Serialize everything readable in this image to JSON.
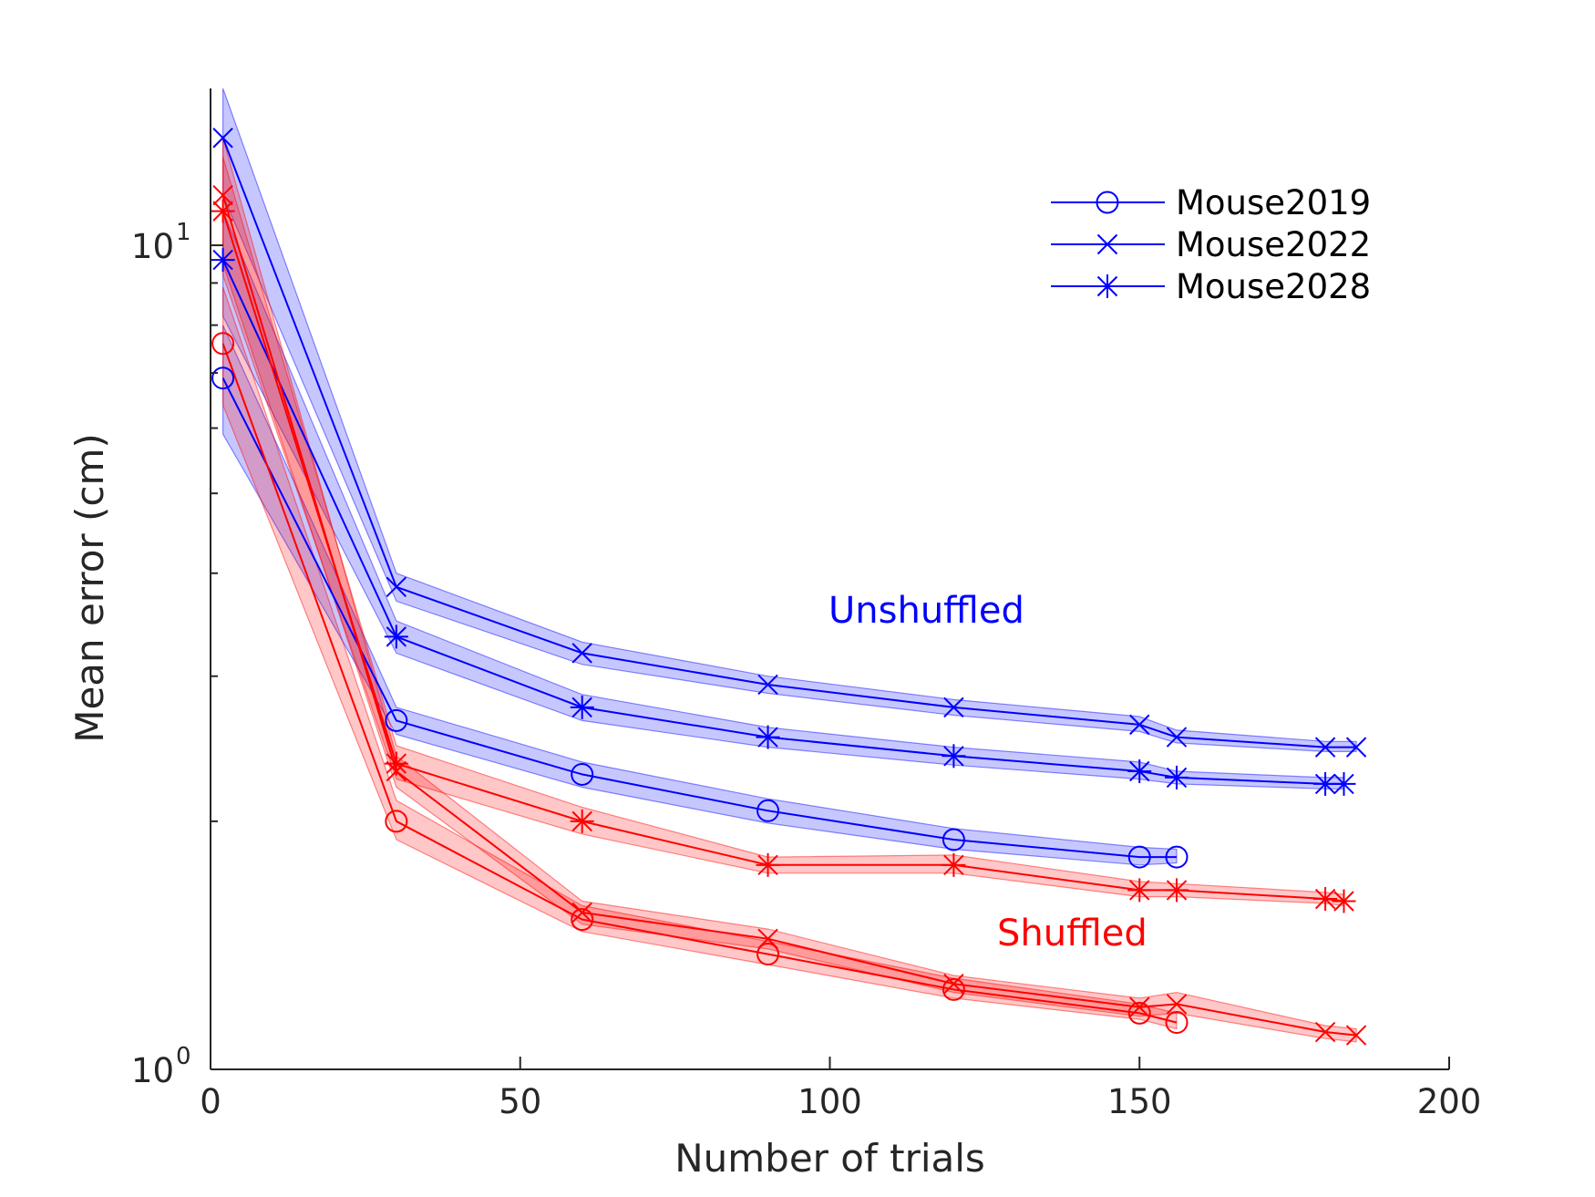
{
  "chart_data": {
    "type": "line",
    "title": "",
    "xlabel": "Number of trials",
    "ylabel": "Mean error (cm)",
    "xlim": [
      0,
      200
    ],
    "ylim": [
      1,
      15.5
    ],
    "yscale": "log",
    "xticks": [
      "0",
      "50",
      "100",
      "150",
      "200"
    ],
    "yticks": [
      {
        "value": 1,
        "base": "10",
        "exp": "0"
      },
      {
        "value": 10,
        "base": "10",
        "exp": "1"
      }
    ],
    "grid": false,
    "legend": {
      "position": "top-right",
      "entries": [
        {
          "name": "Mouse2019",
          "marker": "circle"
        },
        {
          "name": "Mouse2022",
          "marker": "x"
        },
        {
          "name": "Mouse2028",
          "marker": "star"
        }
      ]
    },
    "annotations": [
      {
        "text": "Unshuffled",
        "color": "#0000ff"
      },
      {
        "text": "Shuffled",
        "color": "#ff0000"
      }
    ],
    "colors": {
      "unshuffled": "#0000ff",
      "shuffled": "#ff0000"
    },
    "series": [
      {
        "group": "unshuffled",
        "color": "#0000ff",
        "marker": "circle",
        "x": [
          2,
          30,
          60,
          90,
          120,
          150,
          156
        ],
        "y": [
          6.9,
          2.65,
          2.28,
          2.06,
          1.9,
          1.81,
          1.81
        ],
        "lower": [
          5.9,
          2.55,
          2.2,
          1.99,
          1.85,
          1.77,
          1.78
        ],
        "upper": [
          8.0,
          2.75,
          2.36,
          2.13,
          1.96,
          1.86,
          1.85
        ]
      },
      {
        "group": "unshuffled",
        "color": "#0000ff",
        "marker": "x",
        "x": [
          2,
          30,
          60,
          90,
          120,
          150,
          156,
          180,
          185
        ],
        "y": [
          13.5,
          3.85,
          3.2,
          2.93,
          2.75,
          2.62,
          2.53,
          2.46,
          2.46
        ],
        "lower": [
          11.5,
          3.7,
          3.1,
          2.86,
          2.69,
          2.57,
          2.49,
          2.43,
          2.43
        ],
        "upper": [
          15.5,
          4.0,
          3.3,
          3.0,
          2.81,
          2.68,
          2.58,
          2.5,
          2.5
        ]
      },
      {
        "group": "unshuffled",
        "color": "#0000ff",
        "marker": "star",
        "x": [
          2,
          30,
          60,
          90,
          120,
          150,
          156,
          180,
          183
        ],
        "y": [
          9.6,
          3.35,
          2.75,
          2.53,
          2.4,
          2.3,
          2.26,
          2.22,
          2.22
        ],
        "lower": [
          8.2,
          3.2,
          2.65,
          2.46,
          2.34,
          2.25,
          2.22,
          2.19,
          2.19
        ],
        "upper": [
          11.0,
          3.5,
          2.85,
          2.6,
          2.46,
          2.36,
          2.3,
          2.26,
          2.26
        ]
      },
      {
        "group": "shuffled",
        "color": "#ff0000",
        "marker": "circle",
        "x": [
          2,
          30,
          60,
          90,
          120,
          150,
          156
        ],
        "y": [
          7.6,
          2.0,
          1.52,
          1.38,
          1.25,
          1.17,
          1.14
        ],
        "lower": [
          6.4,
          1.9,
          1.47,
          1.34,
          1.22,
          1.15,
          1.12
        ],
        "upper": [
          8.9,
          2.12,
          1.58,
          1.43,
          1.29,
          1.2,
          1.17
        ]
      },
      {
        "group": "shuffled",
        "color": "#ff0000",
        "marker": "x",
        "x": [
          2,
          30,
          60,
          90,
          120,
          150,
          156,
          180,
          185
        ],
        "y": [
          11.5,
          2.3,
          1.55,
          1.44,
          1.27,
          1.19,
          1.2,
          1.11,
          1.1
        ],
        "lower": [
          9.5,
          2.2,
          1.5,
          1.4,
          1.24,
          1.16,
          1.17,
          1.09,
          1.08
        ],
        "upper": [
          13.5,
          2.4,
          1.6,
          1.48,
          1.3,
          1.22,
          1.24,
          1.13,
          1.12
        ]
      },
      {
        "group": "shuffled",
        "color": "#ff0000",
        "marker": "star",
        "x": [
          2,
          30,
          60,
          90,
          120,
          150,
          156,
          180,
          183
        ],
        "y": [
          11.0,
          2.35,
          2.0,
          1.77,
          1.77,
          1.65,
          1.65,
          1.61,
          1.6
        ],
        "lower": [
          9.2,
          2.25,
          1.93,
          1.73,
          1.73,
          1.62,
          1.62,
          1.59,
          1.58
        ],
        "upper": [
          12.8,
          2.47,
          2.08,
          1.81,
          1.82,
          1.69,
          1.68,
          1.64,
          1.63
        ]
      }
    ]
  }
}
